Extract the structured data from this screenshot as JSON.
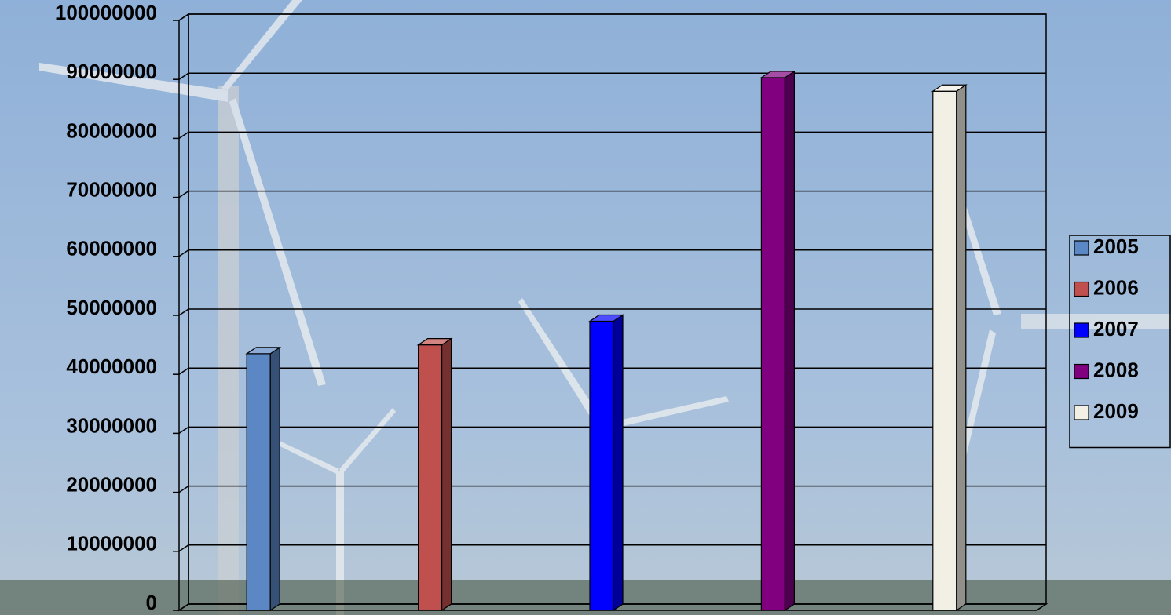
{
  "chart_data": {
    "type": "bar",
    "categories": [
      null
    ],
    "series": [
      {
        "name": "2005",
        "color": "#5b87c5",
        "values": [
          43500000
        ]
      },
      {
        "name": "2006",
        "color": "#c0504d",
        "values": [
          45000000
        ]
      },
      {
        "name": "2007",
        "color": "#0000ff",
        "values": [
          49000000
        ]
      },
      {
        "name": "2008",
        "color": "#800080",
        "values": [
          90300000
        ]
      },
      {
        "name": "2009",
        "color": "#f2efe4",
        "values": [
          88000000
        ]
      }
    ],
    "ylim": [
      0,
      100000000
    ],
    "yticks": [
      0,
      10000000,
      20000000,
      30000000,
      40000000,
      50000000,
      60000000,
      70000000,
      80000000,
      90000000,
      100000000
    ],
    "grid": true,
    "legend": "right"
  }
}
